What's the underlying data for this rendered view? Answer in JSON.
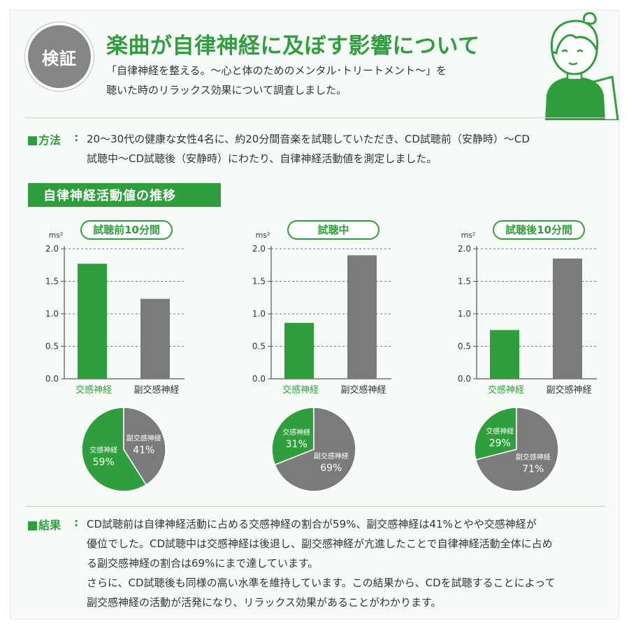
{
  "header": {
    "badge": "検証",
    "title": "楽曲が自律神経に及ぼす影響について",
    "subtitle_line1": "「自律神経を整える。～心と体のためのメンタル･トリートメント～」を",
    "subtitle_line2": "聴いた時のリラックス効果について調査しました。"
  },
  "method": {
    "label": "方法",
    "colon": ":",
    "line1": "20～30代の健康な女性4名に、約20分間音楽を試聴していただき、CD試聴前（安静時）～CD",
    "line2": "試聴中～CD試聴後（安静時）にわたり、自律神経活動値を測定しました。"
  },
  "section_title": "自律神経活動値の推移",
  "colors": {
    "green": "#2f9e3c",
    "gray": "#7b7b7b",
    "text": "#333333",
    "axis": "#555555",
    "grid": "#777777"
  },
  "chart_data": [
    {
      "type": "bar",
      "title": "試聴前10分間",
      "ylabel": "ms²",
      "categories": [
        "交感神経",
        "副交感神経"
      ],
      "values": [
        1.77,
        1.23
      ],
      "ylim": [
        0,
        2.0
      ],
      "yticks": [
        "0.0",
        "0.5",
        "1.0",
        "1.5",
        "2.0"
      ],
      "grid": true,
      "pie": {
        "type": "pie",
        "labels": [
          "交感神経",
          "副交感神経"
        ],
        "percent_labels": [
          "59%",
          "41%"
        ],
        "values": [
          59,
          41
        ]
      }
    },
    {
      "type": "bar",
      "title": "試聴中",
      "ylabel": "ms²",
      "categories": [
        "交感神経",
        "副交感神経"
      ],
      "values": [
        0.86,
        1.9
      ],
      "ylim": [
        0,
        2.0
      ],
      "yticks": [
        "0.0",
        "0.5",
        "1.0",
        "1.5",
        "2.0"
      ],
      "grid": true,
      "pie": {
        "type": "pie",
        "labels": [
          "交感神経",
          "副交感神経"
        ],
        "percent_labels": [
          "31%",
          "69%"
        ],
        "values": [
          31,
          69
        ]
      }
    },
    {
      "type": "bar",
      "title": "試聴後10分間",
      "ylabel": "ms²",
      "categories": [
        "交感神経",
        "副交感神経"
      ],
      "values": [
        0.75,
        1.85
      ],
      "ylim": [
        0,
        2.0
      ],
      "yticks": [
        "0.0",
        "0.5",
        "1.0",
        "1.5",
        "2.0"
      ],
      "grid": true,
      "pie": {
        "type": "pie",
        "labels": [
          "交感神経",
          "副交感神経"
        ],
        "percent_labels": [
          "29%",
          "71%"
        ],
        "values": [
          29,
          71
        ]
      }
    }
  ],
  "result": {
    "label": "結果",
    "colon": ":",
    "line1": "CD試聴前は自律神経活動に占める交感神経の割合が59%、副交感神経は41%とやや交感神経が",
    "line2": "優位でした。CD試聴中は交感神経は後退し、副交感神経が亢進したことで自律神経活動全体に占め",
    "line3": "る副交感神経の割合は69%にまで達しています。",
    "line4": "さらに、CD試聴後も同様の高い水準を維持しています。この結果から、CDを試聴することによって",
    "line5": "副交感神経の活動が活発になり、リラックス効果があることがわかります。"
  }
}
